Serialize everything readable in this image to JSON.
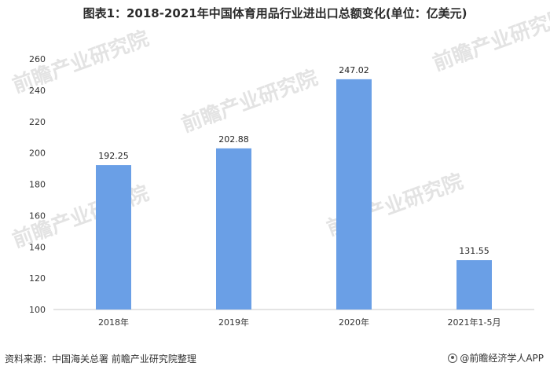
{
  "title": "图表1：2018-2021年中国体育用品行业进出口总额变化(单位：亿美元)",
  "source": "资料来源：中国海关总署 前瞻产业研究院整理",
  "brand": "@前瞻经济学人APP",
  "watermark": "前瞻产业研究院",
  "colors": {
    "bar": "#6a9fe6",
    "axis": "#c8c8c8"
  },
  "chart_data": {
    "type": "bar",
    "title": "图表1：2018-2021年中国体育用品行业进出口总额变化(单位：亿美元)",
    "categories": [
      "2018年",
      "2019年",
      "2020年",
      "2021年1-5月"
    ],
    "values": [
      192.25,
      202.88,
      247.02,
      131.55
    ],
    "value_labels": [
      "192.25",
      "202.88",
      "247.02",
      "131.55"
    ],
    "xlabel": "",
    "ylabel": "",
    "ylim": [
      100,
      260
    ],
    "yticks": [
      100,
      120,
      140,
      160,
      180,
      200,
      220,
      240,
      260
    ],
    "grid": false,
    "legend": "none"
  }
}
